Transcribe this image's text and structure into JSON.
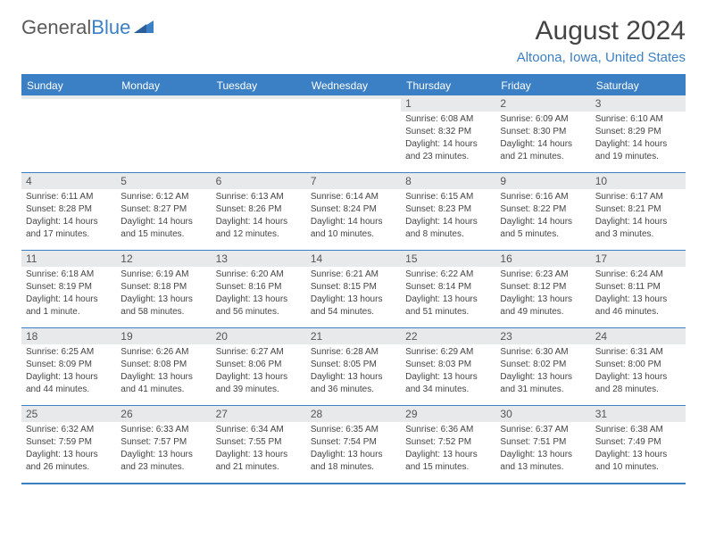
{
  "logo": {
    "part1": "General",
    "part2": "Blue"
  },
  "title": "August 2024",
  "location": "Altoona, Iowa, United States",
  "colors": {
    "accent": "#3b7fc4",
    "header_bg": "#3b7fc4",
    "daynum_bg": "#e8e9ea",
    "text": "#444444",
    "logo_gray": "#5a5a5a"
  },
  "weekdays": [
    "Sunday",
    "Monday",
    "Tuesday",
    "Wednesday",
    "Thursday",
    "Friday",
    "Saturday"
  ],
  "weeks": [
    [
      {
        "empty": true
      },
      {
        "empty": true
      },
      {
        "empty": true
      },
      {
        "empty": true
      },
      {
        "n": "1",
        "sunrise": "Sunrise: 6:08 AM",
        "sunset": "Sunset: 8:32 PM",
        "dl1": "Daylight: 14 hours",
        "dl2": "and 23 minutes."
      },
      {
        "n": "2",
        "sunrise": "Sunrise: 6:09 AM",
        "sunset": "Sunset: 8:30 PM",
        "dl1": "Daylight: 14 hours",
        "dl2": "and 21 minutes."
      },
      {
        "n": "3",
        "sunrise": "Sunrise: 6:10 AM",
        "sunset": "Sunset: 8:29 PM",
        "dl1": "Daylight: 14 hours",
        "dl2": "and 19 minutes."
      }
    ],
    [
      {
        "n": "4",
        "sunrise": "Sunrise: 6:11 AM",
        "sunset": "Sunset: 8:28 PM",
        "dl1": "Daylight: 14 hours",
        "dl2": "and 17 minutes."
      },
      {
        "n": "5",
        "sunrise": "Sunrise: 6:12 AM",
        "sunset": "Sunset: 8:27 PM",
        "dl1": "Daylight: 14 hours",
        "dl2": "and 15 minutes."
      },
      {
        "n": "6",
        "sunrise": "Sunrise: 6:13 AM",
        "sunset": "Sunset: 8:26 PM",
        "dl1": "Daylight: 14 hours",
        "dl2": "and 12 minutes."
      },
      {
        "n": "7",
        "sunrise": "Sunrise: 6:14 AM",
        "sunset": "Sunset: 8:24 PM",
        "dl1": "Daylight: 14 hours",
        "dl2": "and 10 minutes."
      },
      {
        "n": "8",
        "sunrise": "Sunrise: 6:15 AM",
        "sunset": "Sunset: 8:23 PM",
        "dl1": "Daylight: 14 hours",
        "dl2": "and 8 minutes."
      },
      {
        "n": "9",
        "sunrise": "Sunrise: 6:16 AM",
        "sunset": "Sunset: 8:22 PM",
        "dl1": "Daylight: 14 hours",
        "dl2": "and 5 minutes."
      },
      {
        "n": "10",
        "sunrise": "Sunrise: 6:17 AM",
        "sunset": "Sunset: 8:21 PM",
        "dl1": "Daylight: 14 hours",
        "dl2": "and 3 minutes."
      }
    ],
    [
      {
        "n": "11",
        "sunrise": "Sunrise: 6:18 AM",
        "sunset": "Sunset: 8:19 PM",
        "dl1": "Daylight: 14 hours",
        "dl2": "and 1 minute."
      },
      {
        "n": "12",
        "sunrise": "Sunrise: 6:19 AM",
        "sunset": "Sunset: 8:18 PM",
        "dl1": "Daylight: 13 hours",
        "dl2": "and 58 minutes."
      },
      {
        "n": "13",
        "sunrise": "Sunrise: 6:20 AM",
        "sunset": "Sunset: 8:16 PM",
        "dl1": "Daylight: 13 hours",
        "dl2": "and 56 minutes."
      },
      {
        "n": "14",
        "sunrise": "Sunrise: 6:21 AM",
        "sunset": "Sunset: 8:15 PM",
        "dl1": "Daylight: 13 hours",
        "dl2": "and 54 minutes."
      },
      {
        "n": "15",
        "sunrise": "Sunrise: 6:22 AM",
        "sunset": "Sunset: 8:14 PM",
        "dl1": "Daylight: 13 hours",
        "dl2": "and 51 minutes."
      },
      {
        "n": "16",
        "sunrise": "Sunrise: 6:23 AM",
        "sunset": "Sunset: 8:12 PM",
        "dl1": "Daylight: 13 hours",
        "dl2": "and 49 minutes."
      },
      {
        "n": "17",
        "sunrise": "Sunrise: 6:24 AM",
        "sunset": "Sunset: 8:11 PM",
        "dl1": "Daylight: 13 hours",
        "dl2": "and 46 minutes."
      }
    ],
    [
      {
        "n": "18",
        "sunrise": "Sunrise: 6:25 AM",
        "sunset": "Sunset: 8:09 PM",
        "dl1": "Daylight: 13 hours",
        "dl2": "and 44 minutes."
      },
      {
        "n": "19",
        "sunrise": "Sunrise: 6:26 AM",
        "sunset": "Sunset: 8:08 PM",
        "dl1": "Daylight: 13 hours",
        "dl2": "and 41 minutes."
      },
      {
        "n": "20",
        "sunrise": "Sunrise: 6:27 AM",
        "sunset": "Sunset: 8:06 PM",
        "dl1": "Daylight: 13 hours",
        "dl2": "and 39 minutes."
      },
      {
        "n": "21",
        "sunrise": "Sunrise: 6:28 AM",
        "sunset": "Sunset: 8:05 PM",
        "dl1": "Daylight: 13 hours",
        "dl2": "and 36 minutes."
      },
      {
        "n": "22",
        "sunrise": "Sunrise: 6:29 AM",
        "sunset": "Sunset: 8:03 PM",
        "dl1": "Daylight: 13 hours",
        "dl2": "and 34 minutes."
      },
      {
        "n": "23",
        "sunrise": "Sunrise: 6:30 AM",
        "sunset": "Sunset: 8:02 PM",
        "dl1": "Daylight: 13 hours",
        "dl2": "and 31 minutes."
      },
      {
        "n": "24",
        "sunrise": "Sunrise: 6:31 AM",
        "sunset": "Sunset: 8:00 PM",
        "dl1": "Daylight: 13 hours",
        "dl2": "and 28 minutes."
      }
    ],
    [
      {
        "n": "25",
        "sunrise": "Sunrise: 6:32 AM",
        "sunset": "Sunset: 7:59 PM",
        "dl1": "Daylight: 13 hours",
        "dl2": "and 26 minutes."
      },
      {
        "n": "26",
        "sunrise": "Sunrise: 6:33 AM",
        "sunset": "Sunset: 7:57 PM",
        "dl1": "Daylight: 13 hours",
        "dl2": "and 23 minutes."
      },
      {
        "n": "27",
        "sunrise": "Sunrise: 6:34 AM",
        "sunset": "Sunset: 7:55 PM",
        "dl1": "Daylight: 13 hours",
        "dl2": "and 21 minutes."
      },
      {
        "n": "28",
        "sunrise": "Sunrise: 6:35 AM",
        "sunset": "Sunset: 7:54 PM",
        "dl1": "Daylight: 13 hours",
        "dl2": "and 18 minutes."
      },
      {
        "n": "29",
        "sunrise": "Sunrise: 6:36 AM",
        "sunset": "Sunset: 7:52 PM",
        "dl1": "Daylight: 13 hours",
        "dl2": "and 15 minutes."
      },
      {
        "n": "30",
        "sunrise": "Sunrise: 6:37 AM",
        "sunset": "Sunset: 7:51 PM",
        "dl1": "Daylight: 13 hours",
        "dl2": "and 13 minutes."
      },
      {
        "n": "31",
        "sunrise": "Sunrise: 6:38 AM",
        "sunset": "Sunset: 7:49 PM",
        "dl1": "Daylight: 13 hours",
        "dl2": "and 10 minutes."
      }
    ]
  ]
}
